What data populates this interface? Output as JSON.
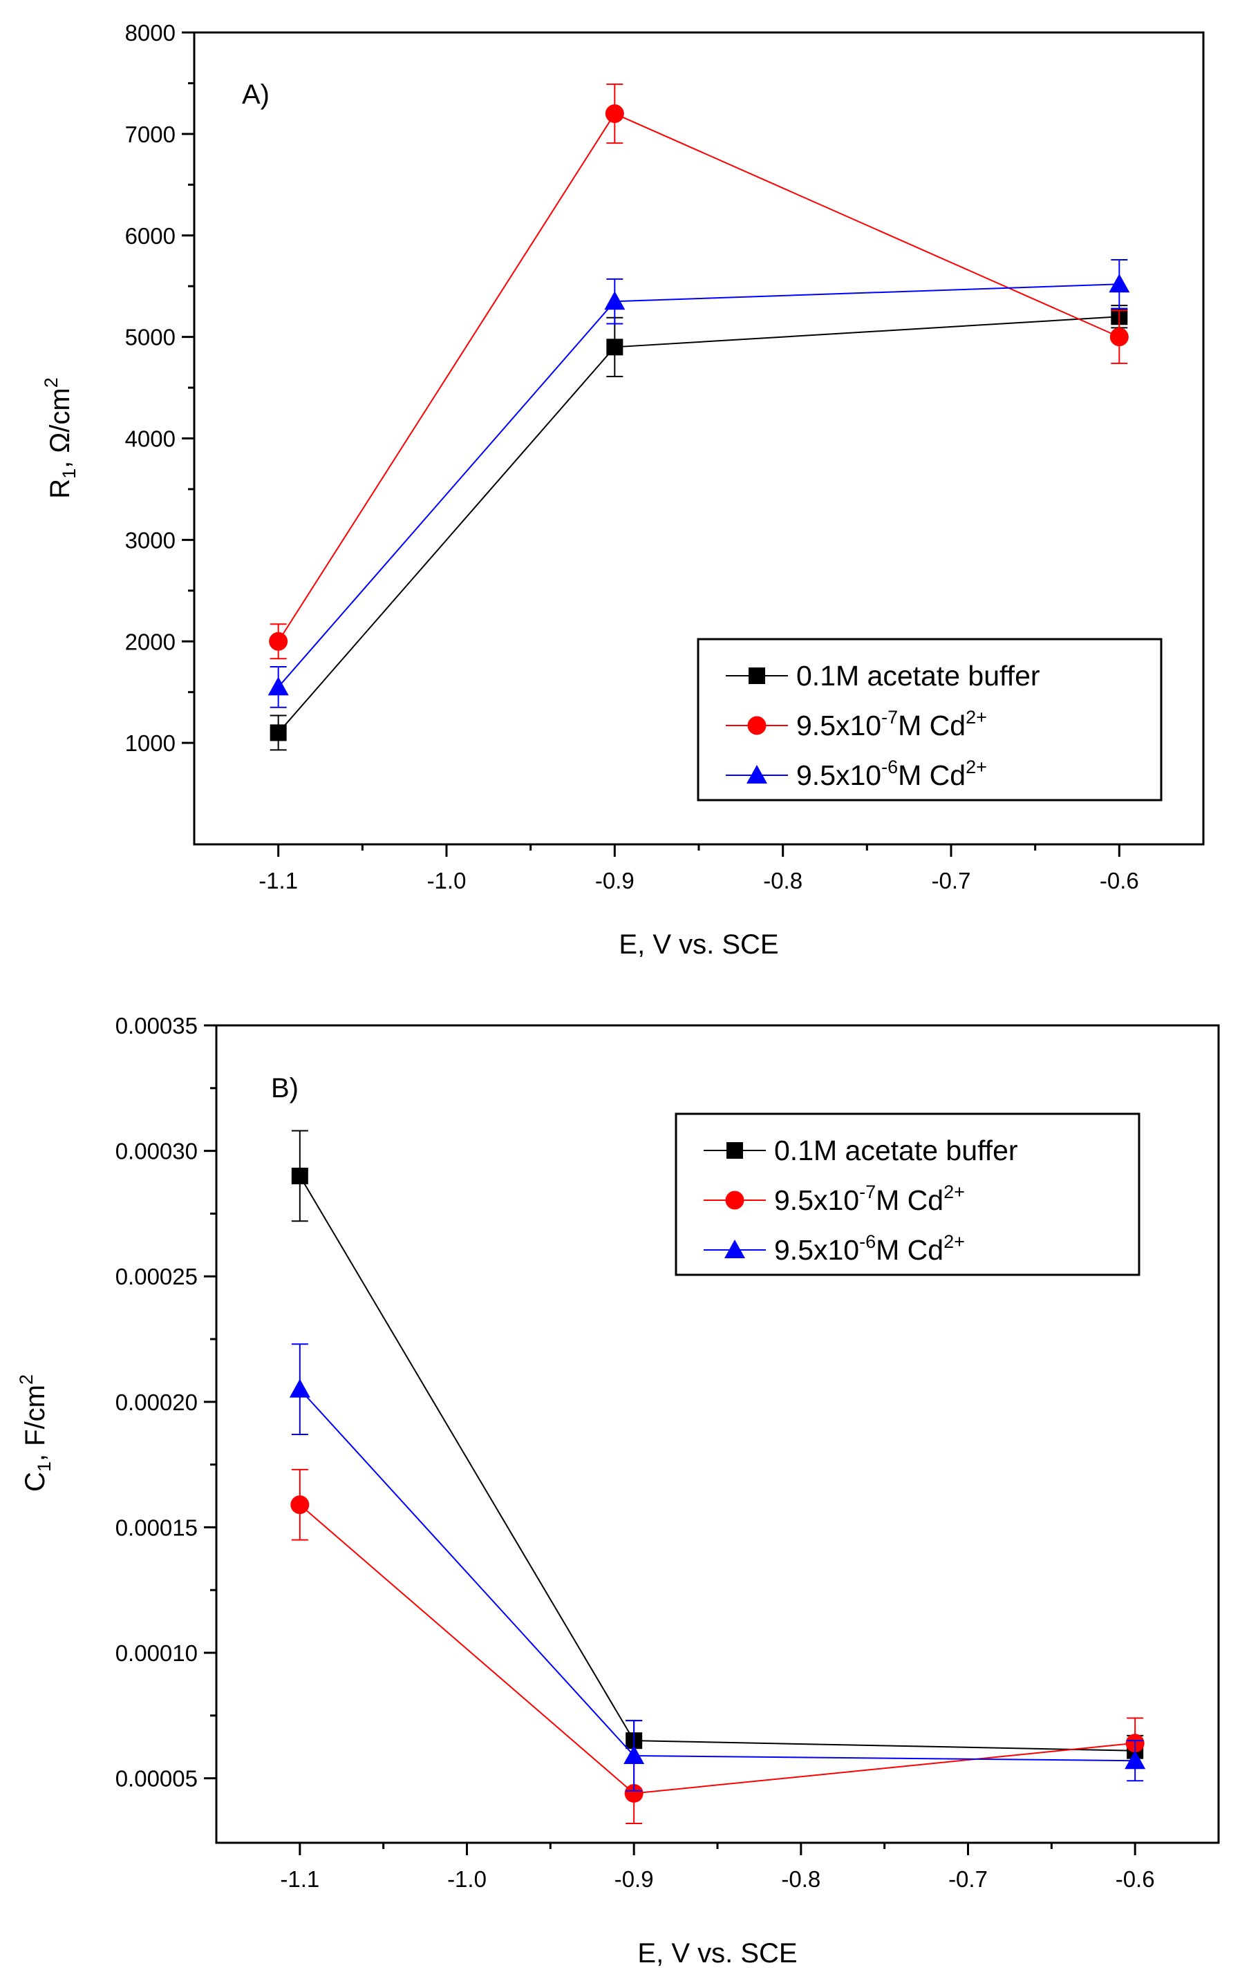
{
  "figure": {
    "background": "#ffffff"
  },
  "chart_data": [
    {
      "type": "line",
      "panel_label": "A)",
      "xlabel": "E, V vs. SCE",
      "ylabel": {
        "main": "R",
        "sub": "1",
        "unit": ", Ω/cm",
        "sup": "2"
      },
      "xlim": [
        -1.15,
        -0.55
      ],
      "ylim": [
        0,
        8000
      ],
      "x_ticks": [
        -1.1,
        -1.0,
        -0.9,
        -0.8,
        -0.7,
        -0.6
      ],
      "x_tick_labels": [
        "-1.1",
        "-1.0",
        "-0.9",
        "-0.8",
        "-0.7",
        "-0.6"
      ],
      "y_ticks": [
        1000,
        2000,
        3000,
        4000,
        5000,
        6000,
        7000,
        8000
      ],
      "y_tick_labels": [
        "1000",
        "2000",
        "3000",
        "4000",
        "5000",
        "6000",
        "7000",
        "8000"
      ],
      "legend_position": "lower-right",
      "series": [
        {
          "name": "0.1M acetate buffer",
          "label": {
            "text": "0.1M acetate buffer"
          },
          "color": "#000000",
          "marker": "square",
          "x": [
            -1.1,
            -0.9,
            -0.6
          ],
          "values": [
            1100,
            4900,
            5200
          ],
          "errors": [
            170,
            290,
            110
          ]
        },
        {
          "name": "9.5x10-7M Cd2+",
          "label": {
            "text": "9.5x10",
            "exp": "-7",
            "text2": "M Cd",
            "ion": "2+"
          },
          "color": "#ff0000",
          "marker": "circle",
          "x": [
            -1.1,
            -0.9,
            -0.6
          ],
          "values": [
            2000,
            7200,
            5000
          ],
          "errors": [
            170,
            290,
            260
          ]
        },
        {
          "name": "9.5x10-6M Cd2+",
          "label": {
            "text": "9.5x10",
            "exp": "-6",
            "text2": "M Cd",
            "ion": "2+"
          },
          "color": "#0000ff",
          "marker": "triangle",
          "x": [
            -1.1,
            -0.9,
            -0.6
          ],
          "values": [
            1550,
            5350,
            5520
          ],
          "errors": [
            200,
            220,
            240
          ]
        }
      ]
    },
    {
      "type": "line",
      "panel_label": "B)",
      "xlabel": "E, V vs. SCE",
      "ylabel": {
        "main": "C",
        "sub": "1",
        "unit": ", F/cm",
        "sup": "2"
      },
      "xlim": [
        -1.15,
        -0.55
      ],
      "ylim": [
        2.43e-05,
        0.00035
      ],
      "x_ticks": [
        -1.1,
        -1.0,
        -0.9,
        -0.8,
        -0.7,
        -0.6
      ],
      "x_tick_labels": [
        "-1.1",
        "-1.0",
        "-0.9",
        "-0.8",
        "-0.7",
        "-0.6"
      ],
      "y_ticks": [
        5e-05,
        0.0001,
        0.00015,
        0.0002,
        0.00025,
        0.0003,
        0.00035
      ],
      "y_tick_labels": [
        "0.00005",
        "0.00010",
        "0.00015",
        "0.00020",
        "0.00025",
        "0.00030",
        "0.00035"
      ],
      "legend_position": "top-right",
      "series": [
        {
          "name": "0.1M acetate buffer",
          "label": {
            "text": "0.1M acetate buffer"
          },
          "color": "#000000",
          "marker": "square",
          "x": [
            -1.1,
            -0.9,
            -0.6
          ],
          "values": [
            0.00029,
            6.5e-05,
            6.1e-05
          ],
          "errors": [
            1.8e-05,
            8e-06,
            6e-06
          ]
        },
        {
          "name": "9.5x10-7M Cd2+",
          "label": {
            "text": "9.5x10",
            "exp": "-7",
            "text2": "M Cd",
            "ion": "2+"
          },
          "color": "#ff0000",
          "marker": "circle",
          "x": [
            -1.1,
            -0.9,
            -0.6
          ],
          "values": [
            0.000159,
            4.4e-05,
            6.4e-05
          ],
          "errors": [
            1.4e-05,
            1.2e-05,
            1e-05
          ]
        },
        {
          "name": "9.5x10-6M Cd2+",
          "label": {
            "text": "9.5x10",
            "exp": "-6",
            "text2": "M Cd",
            "ion": "2+"
          },
          "color": "#0000ff",
          "marker": "triangle",
          "x": [
            -1.1,
            -0.9,
            -0.6
          ],
          "values": [
            0.000205,
            5.9e-05,
            5.7e-05
          ],
          "errors": [
            1.8e-05,
            1.4e-05,
            8e-06
          ]
        }
      ]
    }
  ]
}
